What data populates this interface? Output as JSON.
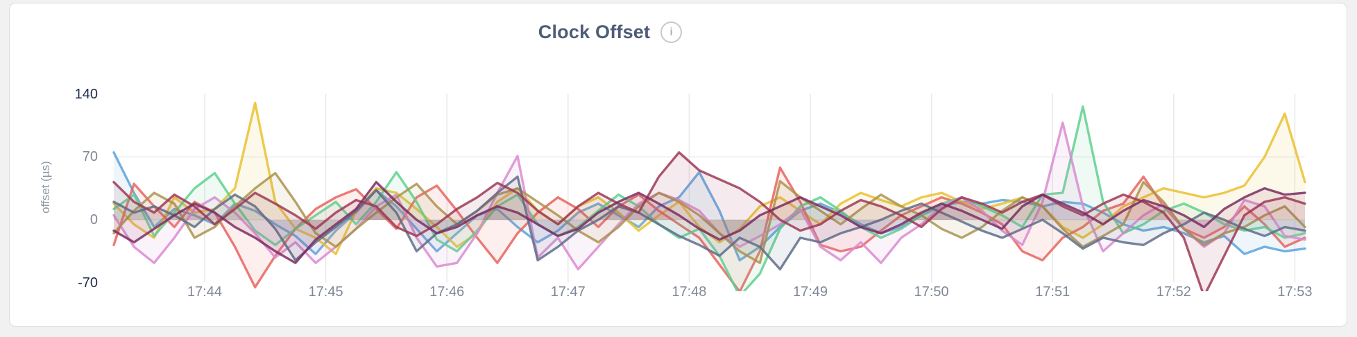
{
  "header": {
    "title": "Clock Offset",
    "info_icon_glyph": "i"
  },
  "chart_data": {
    "type": "line",
    "title": "Clock Offset",
    "xlabel": "",
    "ylabel": "offset (µs)",
    "ylim": [
      -70,
      140
    ],
    "grid": "on",
    "legend": "none",
    "x_start": "17:43:15",
    "x_interval_s": 10,
    "x_ticks": [
      "17:44",
      "17:45",
      "17:46",
      "17:47",
      "17:48",
      "17:49",
      "17:50",
      "17:51",
      "17:52",
      "17:53"
    ],
    "y_ticks": [
      {
        "label": "140",
        "value": 140,
        "emphasis": true
      },
      {
        "label": "70",
        "value": 70,
        "emphasis": false
      },
      {
        "label": "0",
        "value": 0,
        "emphasis": false
      },
      {
        "label": "-70",
        "value": -70,
        "emphasis": true
      }
    ],
    "series": [
      {
        "name": "blue",
        "color": "#5CA2DC",
        "values": [
          75,
          30,
          -8,
          12,
          5,
          -5,
          18,
          10,
          -5,
          -18,
          -38,
          -12,
          8,
          33,
          15,
          -10,
          -35,
          -15,
          5,
          12,
          -8,
          -25,
          -12,
          8,
          18,
          5,
          -8,
          15,
          25,
          53,
          10,
          -45,
          -30,
          -8,
          10,
          18,
          8,
          -5,
          -15,
          -8,
          5,
          15,
          20,
          18,
          22,
          20,
          15,
          20,
          18,
          8,
          -5,
          -12,
          -8,
          -15,
          -25,
          -18,
          -38,
          -30,
          -35,
          -32
        ]
      },
      {
        "name": "gold",
        "color": "#EAC12F",
        "values": [
          18,
          -5,
          -20,
          25,
          8,
          12,
          35,
          130,
          20,
          -10,
          -20,
          -38,
          10,
          35,
          30,
          12,
          -8,
          -30,
          -15,
          20,
          35,
          10,
          -5,
          15,
          25,
          8,
          -12,
          5,
          20,
          -8,
          -25,
          -10,
          15,
          25,
          10,
          -5,
          18,
          30,
          22,
          15,
          25,
          30,
          20,
          12,
          18,
          25,
          15,
          -8,
          -20,
          -5,
          15,
          25,
          35,
          30,
          25,
          30,
          38,
          70,
          118,
          42
        ]
      },
      {
        "name": "red",
        "color": "#E7645D",
        "values": [
          -28,
          40,
          15,
          -8,
          20,
          8,
          -30,
          -75,
          -40,
          -10,
          12,
          25,
          34,
          12,
          -10,
          25,
          38,
          10,
          -20,
          -48,
          -15,
          8,
          25,
          12,
          -8,
          15,
          28,
          10,
          -5,
          -20,
          -50,
          -80,
          -35,
          58,
          20,
          -28,
          -35,
          -30,
          -12,
          5,
          15,
          25,
          18,
          8,
          -5,
          -35,
          -45,
          -20,
          -8,
          10,
          18,
          48,
          15,
          -10,
          -20,
          -8,
          15,
          -5,
          -30,
          -20
        ]
      },
      {
        "name": "green",
        "color": "#5FD08F",
        "values": [
          12,
          28,
          -18,
          8,
          35,
          52,
          18,
          -12,
          -28,
          -10,
          5,
          20,
          -5,
          20,
          53,
          20,
          -22,
          -35,
          -12,
          15,
          28,
          -5,
          -18,
          -8,
          10,
          28,
          15,
          -5,
          -20,
          -10,
          -40,
          -85,
          -60,
          -10,
          15,
          25,
          10,
          -8,
          -20,
          -10,
          5,
          18,
          25,
          15,
          5,
          -8,
          28,
          30,
          126,
          20,
          -15,
          -5,
          10,
          18,
          8,
          -5,
          -12,
          -8,
          -20,
          -15
        ]
      },
      {
        "name": "orchid",
        "color": "#D98BD1",
        "values": [
          5,
          -30,
          -48,
          -20,
          12,
          25,
          8,
          -15,
          -42,
          -25,
          -48,
          -30,
          -10,
          15,
          28,
          -20,
          -52,
          -48,
          -15,
          30,
          71,
          -42,
          -20,
          -55,
          -30,
          -5,
          18,
          30,
          22,
          10,
          -15,
          -30,
          -18,
          -5,
          12,
          -30,
          -45,
          -25,
          -48,
          -20,
          -5,
          15,
          25,
          10,
          -12,
          -28,
          20,
          108,
          15,
          -35,
          -15,
          5,
          18,
          -10,
          -30,
          -15,
          22,
          15,
          -18,
          -22
        ]
      },
      {
        "name": "olive",
        "color": "#AB934E",
        "values": [
          -15,
          10,
          30,
          18,
          -20,
          -8,
          15,
          35,
          52,
          20,
          -15,
          -30,
          -10,
          8,
          25,
          40,
          15,
          -5,
          10,
          28,
          35,
          20,
          5,
          -12,
          -25,
          -8,
          15,
          30,
          20,
          5,
          -15,
          -35,
          -48,
          43,
          25,
          10,
          -5,
          12,
          28,
          15,
          5,
          -10,
          -20,
          -8,
          10,
          25,
          15,
          -10,
          -30,
          -18,
          -5,
          42,
          20,
          -10,
          -28,
          -15,
          -8,
          5,
          15,
          -8
        ]
      },
      {
        "name": "slate",
        "color": "#5F6D89",
        "values": [
          20,
          8,
          15,
          5,
          -8,
          12,
          28,
          15,
          -10,
          -45,
          -25,
          -8,
          10,
          33,
          8,
          -35,
          -15,
          -5,
          10,
          30,
          48,
          -45,
          -30,
          -12,
          0,
          15,
          8,
          -5,
          -18,
          -28,
          -40,
          -20,
          -30,
          -55,
          -20,
          -25,
          -15,
          -8,
          0,
          10,
          18,
          8,
          -2,
          -12,
          -20,
          -10,
          0,
          -15,
          -32,
          -20,
          -25,
          -28,
          -15,
          -5,
          8,
          0,
          -10,
          -18,
          -8,
          -12
        ]
      },
      {
        "name": "maroon",
        "color": "#9E3A55",
        "values": [
          42,
          20,
          8,
          28,
          15,
          -5,
          12,
          30,
          18,
          5,
          -10,
          8,
          22,
          15,
          -8,
          -18,
          -5,
          12,
          25,
          41,
          30,
          10,
          -5,
          15,
          30,
          18,
          8,
          48,
          75,
          55,
          45,
          35,
          20,
          0,
          -12,
          -5,
          10,
          22,
          15,
          5,
          -8,
          12,
          25,
          18,
          8,
          20,
          28,
          15,
          5,
          18,
          28,
          20,
          8,
          -20,
          -85,
          -40,
          5,
          20,
          25,
          18
        ]
      },
      {
        "name": "plum",
        "color": "#7B2D62",
        "values": [
          -12,
          -25,
          -10,
          5,
          18,
          8,
          -8,
          -20,
          -35,
          -48,
          -22,
          -5,
          12,
          42,
          20,
          0,
          -15,
          -8,
          5,
          15,
          8,
          -5,
          -18,
          -10,
          8,
          20,
          30,
          18,
          5,
          -10,
          -22,
          -12,
          5,
          15,
          25,
          15,
          5,
          -8,
          -15,
          -5,
          8,
          18,
          10,
          0,
          -10,
          15,
          28,
          18,
          8,
          -5,
          10,
          22,
          15,
          5,
          -8,
          12,
          25,
          35,
          28,
          30
        ]
      }
    ]
  }
}
